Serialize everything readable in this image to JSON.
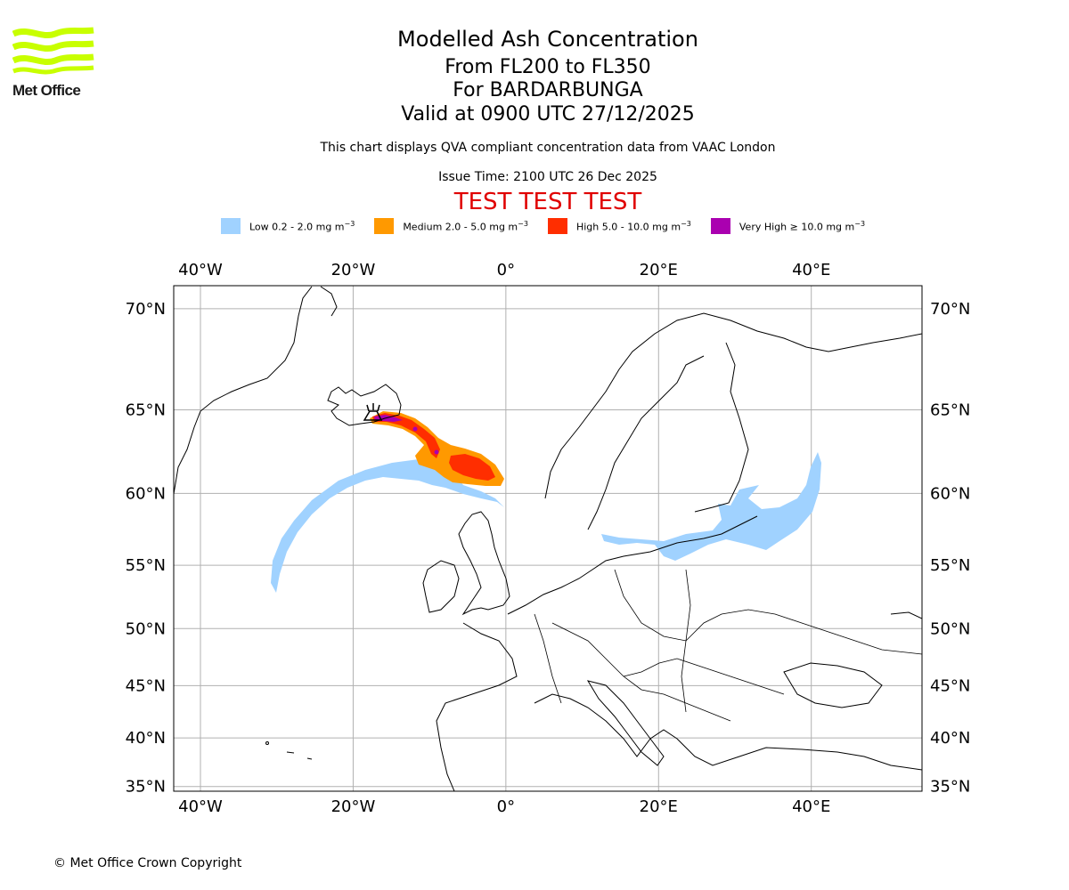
{
  "title": "Modelled Ash Concentration",
  "level_range": "From FL200 to FL350",
  "volcano": "For BARDARBUNGA",
  "valid_time": "Valid at 0900 UTC 27/12/2025",
  "description": "This chart displays QVA compliant concentration data from VAAC London",
  "issue_time": "Issue Time: 2100 UTC 26 Dec 2025",
  "test_banner": "TEST TEST TEST",
  "logo_text": "Met Office",
  "copyright": "© Met Office Crown Copyright",
  "legend": [
    {
      "label": "Low 0.2 - 2.0 mg m",
      "color": "#a0d2ff"
    },
    {
      "label": "Medium 2.0 - 5.0 mg m",
      "color": "#ff9900"
    },
    {
      "label": "High 5.0 - 10.0 mg m",
      "color": "#ff2e00"
    },
    {
      "label": "Very High ≥ 10.0 mg m",
      "color": "#aa00b0"
    }
  ],
  "legend_unit_exponent": "−3",
  "map": {
    "lon_labels": [
      "40°W",
      "20°W",
      "0°",
      "20°E",
      "40°E"
    ],
    "lat_labels": [
      "70°N",
      "65°N",
      "60°N",
      "55°N",
      "50°N",
      "45°N",
      "40°N",
      "35°N"
    ],
    "lon_values": [
      -40,
      -20,
      0,
      20,
      40
    ],
    "lat_values": [
      70,
      65,
      60,
      55,
      50,
      45,
      40,
      35
    ],
    "lon_range": [
      -43.5,
      54.5
    ],
    "lat_range": [
      34.5,
      71
    ]
  }
}
